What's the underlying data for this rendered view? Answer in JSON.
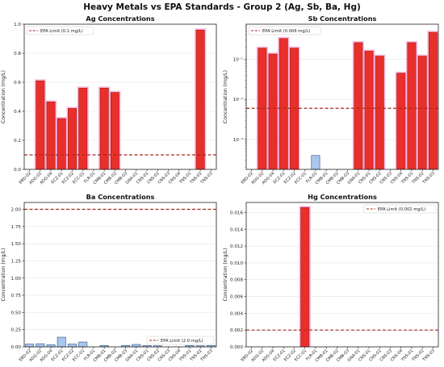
{
  "figure": {
    "title": "Heavy Metals vs EPA Standards - Group 2 (Ag, Sb, Ba, Hg)"
  },
  "colors": {
    "exceed_fill": "#e8302a",
    "exceed_edge": "#b01010",
    "exceed_glow": "#f5a9d8",
    "below_fill": "#a9c7ec",
    "below_edge": "#2f4f7f",
    "epa_line": "#a52a1a",
    "grid": "#e3e3e3"
  },
  "chart_data": [
    {
      "type": "bar",
      "title": "Ag Concentrations",
      "ylabel": "Concentration (mg/L)",
      "yscale": "linear",
      "ylim": [
        0,
        1.0
      ],
      "yticks": [
        "0.0",
        "0.2",
        "0.4",
        "0.6",
        "0.8",
        "1.0"
      ],
      "yticks_val": [
        0,
        0.2,
        0.4,
        0.6,
        0.8,
        1.0
      ],
      "epa_limit": 0.1,
      "legend_label": "EPA Limit (0.1 mg/L)",
      "legend_position": "upper-left",
      "categories": [
        "EBD-02",
        "ADG-02",
        "ADG-04",
        "ECZ-01",
        "ECZ-02",
        "ECC-01",
        "FLR-01",
        "CMB-01",
        "CMB-02",
        "CMB-03",
        "GNA-01",
        "CNS-01",
        "CNS-02",
        "CNS-03",
        "CNS-04",
        "TNS-01",
        "TNS-02",
        "TNS-03"
      ],
      "values": [
        0,
        0.61,
        0.465,
        0.35,
        0.42,
        0.56,
        0,
        0.56,
        0.53,
        0,
        0,
        0,
        0,
        0,
        0,
        0,
        0.96,
        0
      ]
    },
    {
      "type": "bar",
      "title": "Sb Concentrations",
      "ylabel": "Concentration (mg/L)",
      "yscale": "log",
      "ylim": [
        0.00018,
        0.75
      ],
      "yticks": [
        "10⁻³",
        "10⁻²",
        "10⁻¹"
      ],
      "yticks_val": [
        0.001,
        0.01,
        0.1
      ],
      "epa_limit": 0.006,
      "legend_label": "EPA Limit (0.006 mg/L)",
      "legend_position": "upper-left",
      "categories": [
        "EBD-02",
        "ADG-02",
        "ADG-04",
        "ECZ-01",
        "ECZ-02",
        "ECC-01",
        "FLR-01",
        "CMB-01",
        "CMB-02",
        "CMB-03",
        "GNA-01",
        "CNS-01",
        "CNS-02",
        "CNS-03",
        "CNS-04",
        "TNS-01",
        "TNS-02",
        "TNS-03"
      ],
      "values": [
        0,
        0.19,
        0.135,
        0.33,
        0.19,
        0,
        0.0004,
        0,
        0,
        0,
        0.26,
        0.16,
        0.12,
        0,
        0.045,
        0.26,
        0.12,
        0.47
      ]
    },
    {
      "type": "bar",
      "title": "Ba Concentrations",
      "ylabel": "Concentration (mg/L)",
      "yscale": "linear",
      "ylim": [
        0,
        2.1
      ],
      "yticks": [
        "0.00",
        "0.25",
        "0.50",
        "0.75",
        "1.00",
        "1.25",
        "1.50",
        "1.75",
        "2.00"
      ],
      "yticks_val": [
        0,
        0.25,
        0.5,
        0.75,
        1.0,
        1.25,
        1.5,
        1.75,
        2.0
      ],
      "epa_limit": 2.0,
      "legend_label": "EPA Limit (2.0 mg/L)",
      "legend_position": "lower-right",
      "categories": [
        "EBD-02",
        "ADG-02",
        "ADG-04",
        "ECZ-01",
        "ECZ-02",
        "ECC-01",
        "FLR-01",
        "CMB-01",
        "CMB-02",
        "CMB-03",
        "GNA-01",
        "CNS-01",
        "CNS-02",
        "CNS-03",
        "CNS-04",
        "TNS-01",
        "TNS-02",
        "TNS-03"
      ],
      "values": [
        0.04,
        0.045,
        0.03,
        0.14,
        0.04,
        0.07,
        0,
        0.02,
        0,
        0.02,
        0.035,
        0.02,
        0.015,
        0,
        0,
        0.02,
        0.015,
        0.02
      ]
    },
    {
      "type": "bar",
      "title": "Hg Concentrations",
      "ylabel": "Concentration (mg/L)",
      "yscale": "linear",
      "ylim": [
        0,
        0.0172
      ],
      "yticks": [
        "0.000",
        "0.002",
        "0.004",
        "0.006",
        "0.008",
        "0.010",
        "0.012",
        "0.014",
        "0.016"
      ],
      "yticks_val": [
        0,
        0.002,
        0.004,
        0.006,
        0.008,
        0.01,
        0.012,
        0.014,
        0.016
      ],
      "epa_limit": 0.002,
      "legend_label": "EPA Limit (0.002 mg/L)",
      "legend_position": "upper-right",
      "categories": [
        "EBD-02",
        "ADG-02",
        "ADG-04",
        "ECZ-01",
        "ECZ-02",
        "ECC-01",
        "FLR-01",
        "CMB-01",
        "CMB-02",
        "CMB-03",
        "GNA-01",
        "CNS-01",
        "CNS-02",
        "CNS-03",
        "CNS-04",
        "TNS-01",
        "TNS-02",
        "TNS-03"
      ],
      "values": [
        0,
        0,
        0,
        0,
        0,
        0.0166,
        0,
        0,
        0,
        0,
        0,
        0,
        0,
        0,
        0,
        0,
        0,
        0
      ]
    }
  ]
}
